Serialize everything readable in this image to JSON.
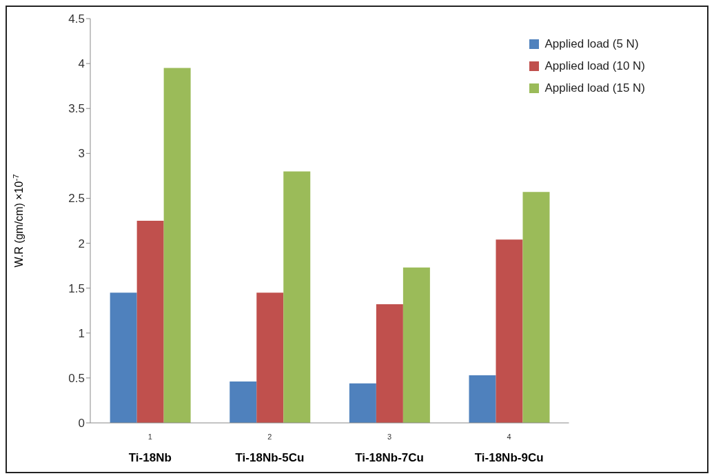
{
  "chart_data": {
    "type": "bar",
    "ylabel": "W.R (gm/cm) ×10$^{-7}$",
    "categories": [
      "Ti-18Nb",
      "Ti-18Nb-5Cu",
      "Ti-18Nb-7Cu",
      "Ti-18Nb-9Cu"
    ],
    "series": [
      {
        "name": "Applied load (5 N)",
        "color": "#4f81bd",
        "values": [
          1.45,
          0.46,
          0.44,
          0.53
        ]
      },
      {
        "name": "Applied load (10 N)",
        "color": "#c0504d",
        "values": [
          2.25,
          1.45,
          1.32,
          2.04
        ]
      },
      {
        "name": "Applied load (15 N)",
        "color": "#9bbb59",
        "values": [
          3.95,
          2.8,
          1.73,
          2.57
        ]
      }
    ],
    "ylim": [
      0,
      4.5
    ],
    "yticks": [
      0,
      0.5,
      1,
      1.5,
      2,
      2.5,
      3,
      3.5,
      4,
      4.5
    ],
    "grid": false,
    "legend": "top right",
    "annotations": [
      "1",
      "2",
      "3",
      "4"
    ]
  }
}
